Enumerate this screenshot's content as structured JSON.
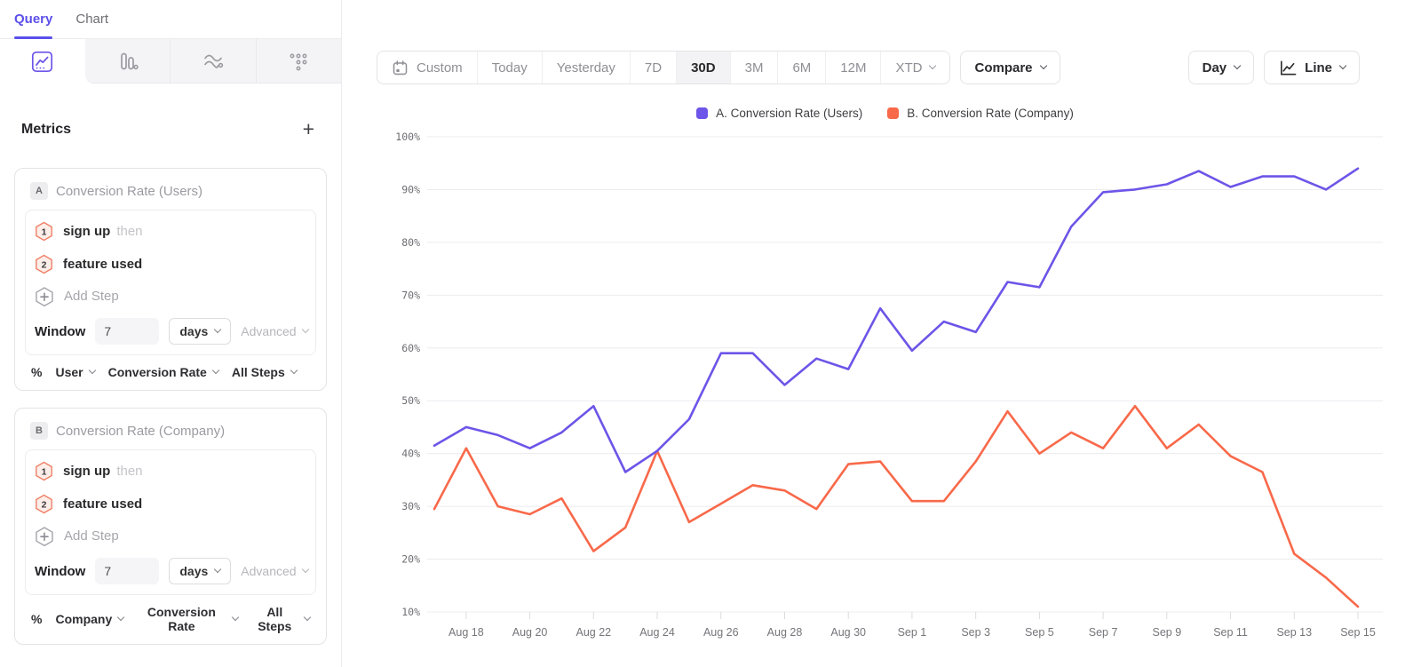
{
  "sidebar": {
    "tabs": [
      {
        "label": "Query"
      },
      {
        "label": "Chart"
      }
    ],
    "view_icons": [
      "line-chart",
      "bar-chart",
      "flow",
      "grid-dots"
    ],
    "metrics_title": "Metrics",
    "add_metric_label": "+",
    "cards": [
      {
        "badge": "A",
        "title": "Conversion Rate (Users)",
        "steps": [
          {
            "num": "1",
            "label": "sign up",
            "suffix": "then"
          },
          {
            "num": "2",
            "label": "feature used",
            "suffix": ""
          }
        ],
        "add_step_label": "Add Step",
        "window_label": "Window",
        "window_value": "7",
        "window_unit": "days",
        "advanced_label": "Advanced",
        "measurement": {
          "prefix": "%",
          "entity": "User",
          "metric": "Conversion Rate",
          "scope": "All Steps"
        }
      },
      {
        "badge": "B",
        "title": "Conversion Rate (Company)",
        "steps": [
          {
            "num": "1",
            "label": "sign up",
            "suffix": "then"
          },
          {
            "num": "2",
            "label": "feature used",
            "suffix": ""
          }
        ],
        "add_step_label": "Add Step",
        "window_label": "Window",
        "window_value": "7",
        "window_unit": "days",
        "advanced_label": "Advanced",
        "measurement": {
          "prefix": "%",
          "entity": "Company",
          "metric": "Conversion Rate",
          "scope": "All Steps"
        }
      }
    ]
  },
  "toolbar": {
    "ranges": [
      "Custom",
      "Today",
      "Yesterday",
      "7D",
      "30D",
      "3M",
      "6M",
      "12M",
      "XTD"
    ],
    "active_range": "30D",
    "compare_label": "Compare",
    "granularity_label": "Day",
    "chart_type_label": "Line"
  },
  "legend": [
    {
      "label": "A. Conversion Rate (Users)",
      "color": "#6C55E8"
    },
    {
      "label": "B. Conversion Rate (Company)",
      "color": "#F8694A"
    }
  ],
  "chart_data": {
    "type": "line",
    "title": "",
    "xlabel": "",
    "ylabel": "",
    "ylim": [
      10,
      100
    ],
    "y_ticks": [
      100,
      90,
      80,
      70,
      60,
      50,
      40,
      30,
      20,
      10
    ],
    "y_unit": "%",
    "grid": "horizontal",
    "legend_position": "top-center",
    "x": [
      "Aug 17",
      "Aug 18",
      "Aug 19",
      "Aug 20",
      "Aug 21",
      "Aug 22",
      "Aug 23",
      "Aug 24",
      "Aug 25",
      "Aug 26",
      "Aug 27",
      "Aug 28",
      "Aug 29",
      "Aug 30",
      "Aug 31",
      "Sep 1",
      "Sep 2",
      "Sep 3",
      "Sep 4",
      "Sep 5",
      "Sep 6",
      "Sep 7",
      "Sep 8",
      "Sep 9",
      "Sep 10",
      "Sep 11",
      "Sep 12",
      "Sep 13",
      "Sep 14",
      "Sep 15"
    ],
    "x_ticks": [
      "Aug 18",
      "Aug 20",
      "Aug 22",
      "Aug 24",
      "Aug 26",
      "Aug 28",
      "Aug 30",
      "Sep 1",
      "Sep 3",
      "Sep 5",
      "Sep 7",
      "Sep 9",
      "Sep 11",
      "Sep 13",
      "Sep 15"
    ],
    "series": [
      {
        "name": "A. Conversion Rate (Users)",
        "color": "#6C55E8",
        "values": [
          41.5,
          45,
          43.5,
          41,
          44,
          49,
          36.5,
          40.5,
          46.5,
          59,
          59,
          53,
          58,
          56,
          67.5,
          59.5,
          65,
          63,
          72.5,
          71.5,
          83,
          89.5,
          90,
          91,
          93.5,
          90.5,
          92.5,
          92.5,
          90,
          94
        ]
      },
      {
        "name": "B. Conversion Rate (Company)",
        "color": "#F8694A",
        "values": [
          29.5,
          41,
          30,
          28.5,
          31.5,
          21.5,
          26,
          40.5,
          27,
          30.5,
          34,
          33,
          29.5,
          38,
          38.5,
          31,
          31,
          38.5,
          48,
          40,
          44,
          41,
          49,
          41,
          45.5,
          39.5,
          36.5,
          21,
          16.5,
          11
        ]
      }
    ]
  }
}
